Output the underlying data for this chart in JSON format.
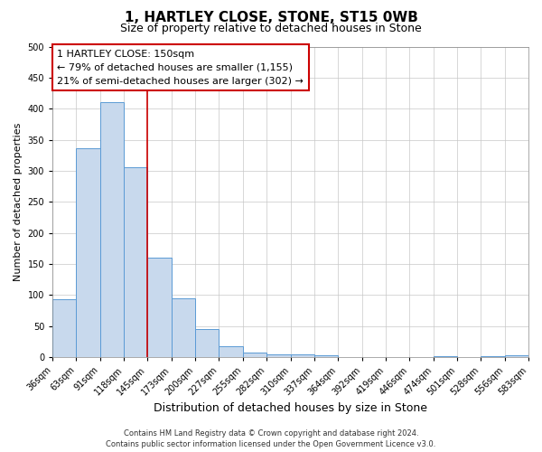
{
  "title": "1, HARTLEY CLOSE, STONE, ST15 0WB",
  "subtitle": "Size of property relative to detached houses in Stone",
  "xlabel": "Distribution of detached houses by size in Stone",
  "ylabel": "Number of detached properties",
  "bin_edges": [
    36,
    63,
    91,
    118,
    145,
    173,
    200,
    227,
    255,
    282,
    310,
    337,
    364,
    392,
    419,
    446,
    474,
    501,
    528,
    556,
    583
  ],
  "bar_heights": [
    93,
    336,
    410,
    305,
    160,
    95,
    45,
    18,
    7,
    4,
    4,
    3,
    0,
    0,
    0,
    0,
    2,
    0,
    2,
    3
  ],
  "tick_labels": [
    "36sqm",
    "63sqm",
    "91sqm",
    "118sqm",
    "145sqm",
    "173sqm",
    "200sqm",
    "227sqm",
    "255sqm",
    "282sqm",
    "310sqm",
    "337sqm",
    "364sqm",
    "392sqm",
    "419sqm",
    "446sqm",
    "474sqm",
    "501sqm",
    "528sqm",
    "556sqm",
    "583sqm"
  ],
  "bar_color": "#c8d9ed",
  "bar_edge_color": "#5b9bd5",
  "vline_x": 145,
  "vline_color": "#cc0000",
  "annotation_text": "1 HARTLEY CLOSE: 150sqm\n← 79% of detached houses are smaller (1,155)\n21% of semi-detached houses are larger (302) →",
  "annotation_box_color": "#ffffff",
  "annotation_box_edge_color": "#cc0000",
  "ylim": [
    0,
    500
  ],
  "yticks": [
    0,
    50,
    100,
    150,
    200,
    250,
    300,
    350,
    400,
    450,
    500
  ],
  "footer_line1": "Contains HM Land Registry data © Crown copyright and database right 2024.",
  "footer_line2": "Contains public sector information licensed under the Open Government Licence v3.0.",
  "background_color": "#ffffff",
  "grid_color": "#c8c8c8",
  "title_fontsize": 11,
  "subtitle_fontsize": 9,
  "xlabel_fontsize": 9,
  "ylabel_fontsize": 8,
  "tick_fontsize": 7,
  "annotation_fontsize": 8,
  "footer_fontsize": 6
}
